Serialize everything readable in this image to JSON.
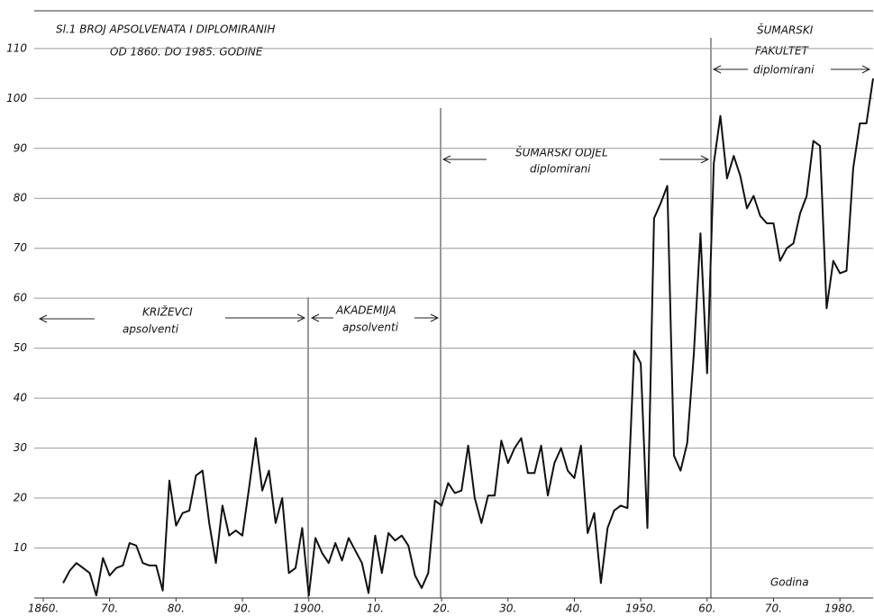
{
  "chart_data": {
    "type": "line",
    "title": "Sl.1  BROJ APSOLVENATA I DIPLOMIRANIH",
    "subtitle": "OD 1860. DO 1985. GODINE",
    "x_label": "Godina",
    "annotations": [
      "KRIŽEVCI",
      "apsolventi",
      "AKADEMIJA",
      "apsolventi",
      "ŠUMARSKI ODJEL",
      "diplomirani",
      "ŠUMARSKI",
      "FAKULTET",
      "diplomirani"
    ],
    "x": [
      1863,
      1864,
      1865,
      1866,
      1867,
      1868,
      1869,
      1870,
      1871,
      1872,
      1873,
      1874,
      1875,
      1876,
      1877,
      1878,
      1879,
      1880,
      1881,
      1882,
      1883,
      1884,
      1885,
      1886,
      1887,
      1888,
      1889,
      1890,
      1891,
      1892,
      1893,
      1894,
      1895,
      1896,
      1897,
      1898,
      1899,
      1900,
      1901,
      1902,
      1903,
      1904,
      1905,
      1906,
      1907,
      1908,
      1909,
      1910,
      1911,
      1912,
      1913,
      1914,
      1915,
      1916,
      1917,
      1918,
      1919,
      1920,
      1921,
      1922,
      1923,
      1924,
      1925,
      1926,
      1927,
      1928,
      1929,
      1930,
      1931,
      1932,
      1933,
      1934,
      1935,
      1936,
      1937,
      1938,
      1939,
      1940,
      1941,
      1942,
      1943,
      1944,
      1945,
      1946,
      1947,
      1948,
      1949,
      1950,
      1951,
      1952,
      1953,
      1954,
      1955,
      1956,
      1957,
      1958,
      1959,
      1960,
      1961,
      1962,
      1963,
      1964,
      1965,
      1966,
      1967,
      1968,
      1969,
      1970,
      1971,
      1972,
      1973,
      1974,
      1975,
      1976,
      1977,
      1978,
      1979,
      1980,
      1981,
      1982,
      1983,
      1984,
      1985
    ],
    "series": [
      {
        "color": "#111111",
        "values": [
          3,
          5.5,
          7,
          6,
          5,
          0.5,
          8,
          4.5,
          6,
          6.5,
          11,
          10.5,
          7,
          6.5,
          6.5,
          1.5,
          23.5,
          14.5,
          17,
          17.5,
          24.5,
          25.5,
          15,
          7,
          18.5,
          12.5,
          13.5,
          12.5,
          22,
          32,
          21.5,
          25.5,
          15,
          20,
          5,
          6,
          14,
          0.5,
          12,
          9,
          7,
          11,
          7.5,
          12,
          9.5,
          7,
          1,
          12.5,
          5,
          13,
          11.5,
          12.5,
          10.5,
          4.5,
          2,
          5,
          19.5,
          18.5,
          23,
          21,
          21.5,
          30.5,
          20,
          15,
          20.5,
          20.5,
          31.5,
          27,
          30,
          32,
          25,
          25,
          30.5,
          20.5,
          27,
          30,
          25.5,
          24,
          30.5,
          13,
          17,
          3,
          14,
          17.5,
          18.5,
          18,
          49.5,
          47,
          14,
          76,
          79,
          82.5,
          28.5,
          25.5,
          31,
          49,
          73,
          45,
          87,
          96.5,
          84,
          88.5,
          84.5,
          78,
          80.5,
          76.5,
          75,
          75,
          67.5,
          70,
          71,
          77,
          80.5,
          91.5,
          90.5,
          58,
          67.5,
          65,
          65.5,
          86,
          95,
          95,
          104
        ]
      }
    ],
    "xlim": [
      1860,
      1985
    ],
    "xticks": [
      {
        "value": 1860,
        "label": "1860."
      },
      {
        "value": 1870,
        "label": "70."
      },
      {
        "value": 1880,
        "label": "80."
      },
      {
        "value": 1890,
        "label": "90."
      },
      {
        "value": 1900,
        "label": "1900."
      },
      {
        "value": 1910,
        "label": "10."
      },
      {
        "value": 1920,
        "label": "20."
      },
      {
        "value": 1930,
        "label": "30."
      },
      {
        "value": 1940,
        "label": "40."
      },
      {
        "value": 1950,
        "label": "1950."
      },
      {
        "value": 1960,
        "label": "60."
      },
      {
        "value": 1970,
        "label": "70."
      },
      {
        "value": 1980,
        "label": "1980."
      }
    ],
    "ylim": [
      0,
      117
    ],
    "yticks": [
      10,
      20,
      30,
      40,
      50,
      60,
      70,
      80,
      90,
      100,
      110
    ],
    "grid": true
  }
}
